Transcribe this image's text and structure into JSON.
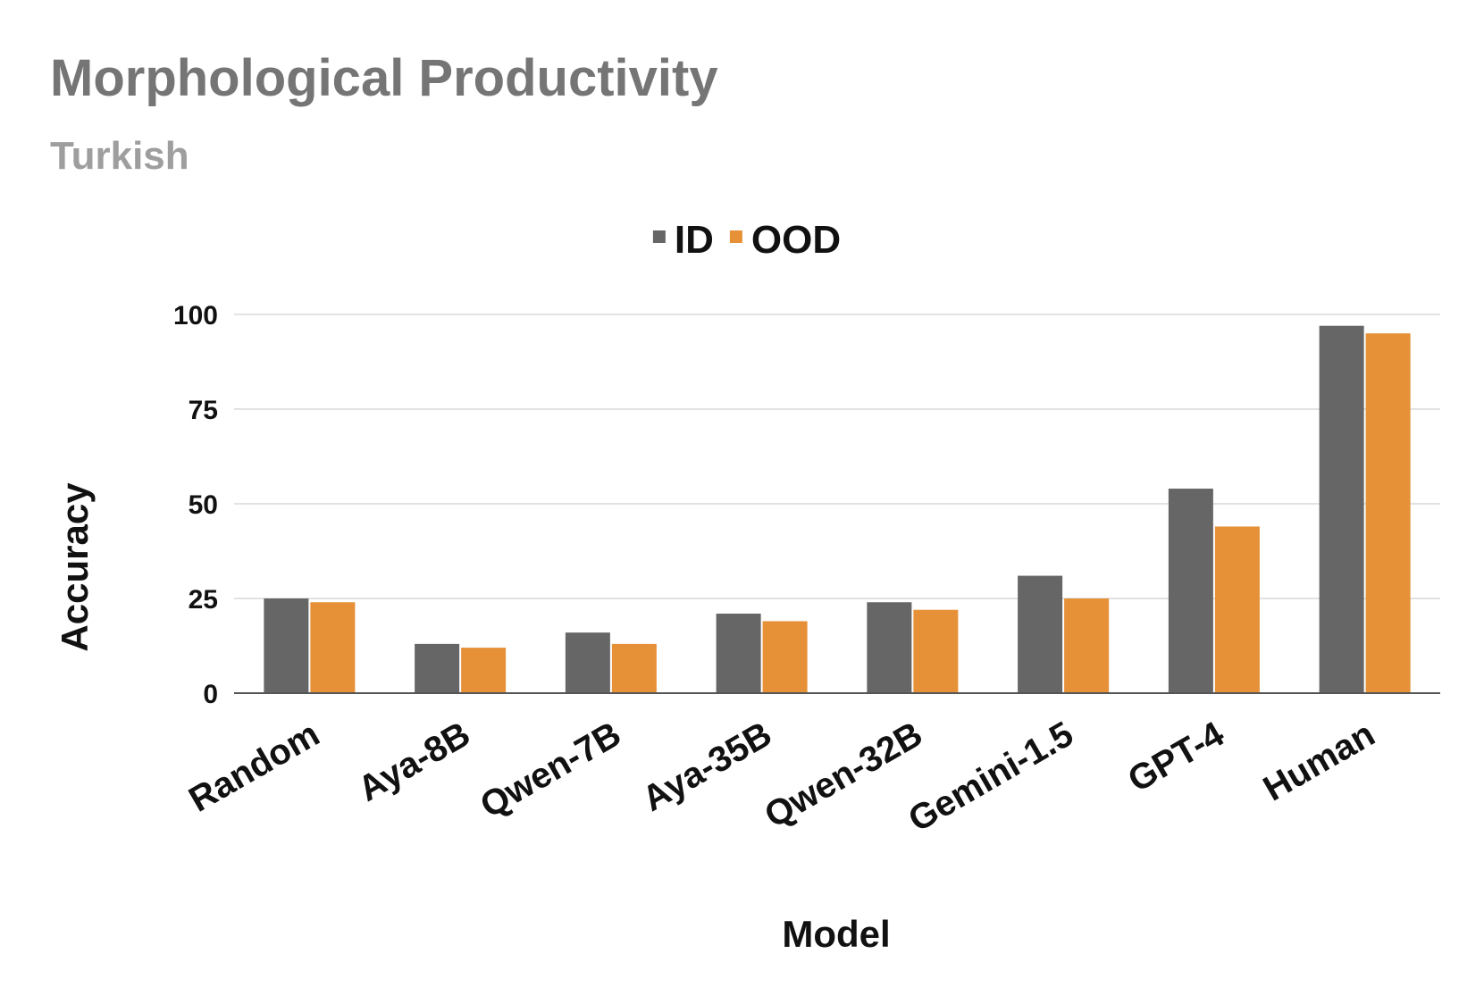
{
  "chart_data": {
    "type": "bar",
    "title": "Morphological Productivity",
    "subtitle": "Turkish",
    "xlabel": "Model",
    "ylabel": "Accuracy",
    "categories": [
      "Random",
      "Aya-8B",
      "Qwen-7B",
      "Aya-35B",
      "Qwen-32B",
      "Gemini-1.5",
      "GPT-4",
      "Human"
    ],
    "series": [
      {
        "name": "ID",
        "color": "#666666",
        "values": [
          25,
          13,
          16,
          21,
          24,
          31,
          54,
          97
        ]
      },
      {
        "name": "OOD",
        "color": "#e69138",
        "values": [
          24,
          12,
          13,
          19,
          22,
          25,
          44,
          95
        ]
      }
    ],
    "ylim": [
      0,
      100
    ],
    "yticks": [
      0,
      25,
      50,
      75,
      100
    ],
    "grid": true,
    "legend": "top-center"
  }
}
